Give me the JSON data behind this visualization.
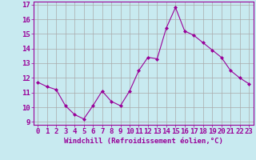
{
  "x": [
    0,
    1,
    2,
    3,
    4,
    5,
    6,
    7,
    8,
    9,
    10,
    11,
    12,
    13,
    14,
    15,
    16,
    17,
    18,
    19,
    20,
    21,
    22,
    23
  ],
  "y": [
    11.7,
    11.4,
    11.2,
    10.1,
    9.5,
    9.2,
    10.1,
    11.1,
    10.4,
    10.1,
    11.1,
    12.5,
    13.4,
    13.3,
    15.4,
    16.8,
    15.2,
    14.9,
    14.4,
    13.9,
    13.4,
    12.5,
    12.0,
    11.6
  ],
  "line_color": "#990099",
  "marker": "D",
  "marker_size": 2,
  "bg_color": "#c8eaf0",
  "grid_color": "#aaaaaa",
  "xlabel": "Windchill (Refroidissement éolien,°C)",
  "ylabel": "",
  "ylim": [
    9,
    17
  ],
  "xlim_min": -0.5,
  "xlim_max": 23.5,
  "yticks": [
    9,
    10,
    11,
    12,
    13,
    14,
    15,
    16,
    17
  ],
  "xticks": [
    0,
    1,
    2,
    3,
    4,
    5,
    6,
    7,
    8,
    9,
    10,
    11,
    12,
    13,
    14,
    15,
    16,
    17,
    18,
    19,
    20,
    21,
    22,
    23
  ],
  "xlabel_fontsize": 6.5,
  "tick_fontsize": 6.5,
  "line_color_purple": "#990099"
}
